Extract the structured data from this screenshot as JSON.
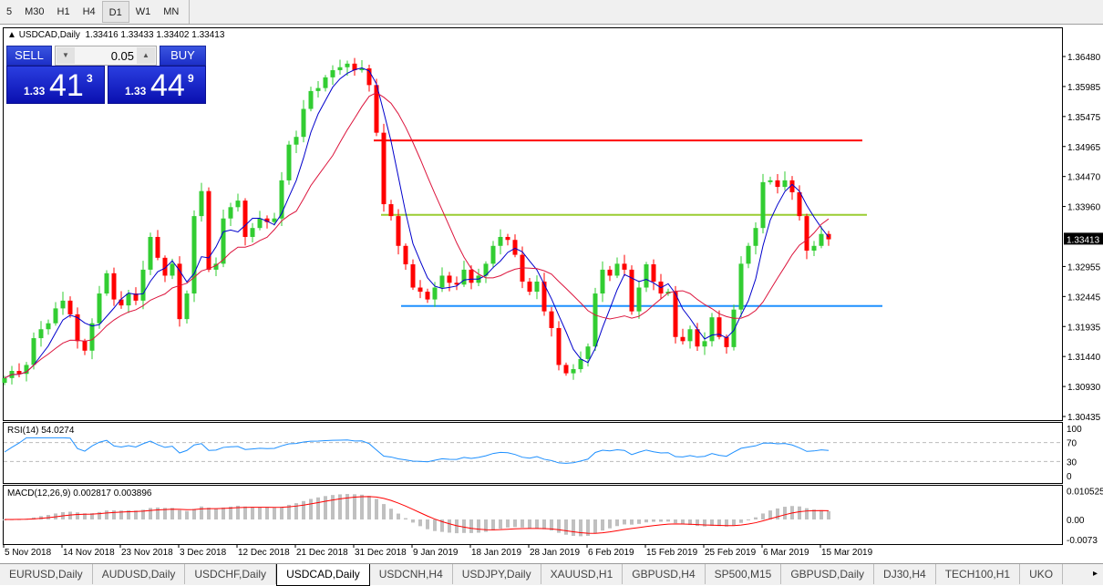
{
  "timeframes": [
    {
      "label": "5"
    },
    {
      "label": "M30"
    },
    {
      "label": "H1"
    },
    {
      "label": "H4"
    },
    {
      "label": "D1",
      "active": true
    },
    {
      "label": "W1"
    },
    {
      "label": "MN"
    }
  ],
  "header": {
    "symbol": "USDCAD,Daily",
    "ohlc": "1.33416 1.33433 1.33402 1.33413"
  },
  "trade": {
    "sell_label": "SELL",
    "buy_label": "BUY",
    "lot": "0.05",
    "sell": {
      "small": "1.33",
      "large": "41",
      "pip": "3"
    },
    "buy": {
      "small": "1.33",
      "large": "44",
      "pip": "9"
    }
  },
  "colors": {
    "bull": "#32cd32",
    "bear": "#ff0000",
    "fast_ma": "#0000cc",
    "slow_ma": "#dc143c",
    "rsi": "#1e90ff",
    "macd_signal": "#ff0000",
    "macd_hist": "#c0c0c0",
    "level_red": "#ff0000",
    "level_yellow": "#9acd32",
    "level_blue": "#1e90ff"
  },
  "chart_data": {
    "type": "candlestick",
    "price_axis": [
      "1.36480",
      "1.35985",
      "1.35475",
      "1.34965",
      "1.34470",
      "1.33960",
      "1.33413",
      "1.32955",
      "1.32445",
      "1.31935",
      "1.31440",
      "1.30930",
      "1.30435"
    ],
    "current_price": "1.33413",
    "ylim": [
      1.30435,
      1.3665
    ],
    "date_labels": [
      "5 Nov 2018",
      "14 Nov 2018",
      "23 Nov 2018",
      "3 Dec 2018",
      "12 Dec 2018",
      "21 Dec 2018",
      "31 Dec 2018",
      "9 Jan 2019",
      "18 Jan 2019",
      "28 Jan 2019",
      "6 Feb 2019",
      "15 Feb 2019",
      "25 Feb 2019",
      "6 Mar 2019",
      "15 Mar 2019"
    ],
    "closes": [
      1.3108,
      1.312,
      1.3115,
      1.313,
      1.3175,
      1.319,
      1.32,
      1.3225,
      1.3238,
      1.3215,
      1.317,
      1.3154,
      1.32,
      1.325,
      1.3284,
      1.324,
      1.323,
      1.325,
      1.3238,
      1.329,
      1.3345,
      1.331,
      1.328,
      1.33,
      1.3207,
      1.325,
      1.338,
      1.3422,
      1.329,
      1.33,
      1.3376,
      1.3395,
      1.3406,
      1.3345,
      1.336,
      1.3376,
      1.337,
      1.3376,
      1.344,
      1.35,
      1.3513,
      1.356,
      1.359,
      1.3595,
      1.3613,
      1.3625,
      1.363,
      1.3636,
      1.3625,
      1.3628,
      1.36,
      1.352,
      1.34,
      1.338,
      1.333,
      1.3299,
      1.326,
      1.3253,
      1.324,
      1.326,
      1.328,
      1.3268,
      1.3265,
      1.329,
      1.3268,
      1.328,
      1.33,
      1.333,
      1.3345,
      1.334,
      1.3315,
      1.327,
      1.3253,
      1.327,
      1.322,
      1.3192,
      1.313,
      1.3116,
      1.3123,
      1.314,
      1.3161,
      1.325,
      1.329,
      1.328,
      1.33,
      1.329,
      1.322,
      1.326,
      1.3299,
      1.327,
      1.325,
      1.3253,
      1.3177,
      1.317,
      1.319,
      1.3161,
      1.317,
      1.321,
      1.3177,
      1.316,
      1.3223,
      1.33,
      1.333,
      1.336,
      1.3437,
      1.344,
      1.3429,
      1.344,
      1.342,
      1.338,
      1.3322,
      1.333,
      1.335,
      1.3341
    ],
    "levels": [
      {
        "price": 1.3507,
        "color": "red"
      },
      {
        "price": 1.3382,
        "color": "yellow"
      },
      {
        "price": 1.3229,
        "color": "blue"
      }
    ],
    "rsi": {
      "label": "RSI(14) 54.0274",
      "axis": [
        "100",
        "70",
        "30",
        "0"
      ]
    },
    "macd": {
      "label": "MACD(12,26,9) 0.002817 0.003896",
      "axis": [
        "0.010525",
        "0.00",
        "-0.0073"
      ]
    }
  },
  "tabs": [
    {
      "label": "EURUSD,Daily"
    },
    {
      "label": "AUDUSD,Daily"
    },
    {
      "label": "USDCHF,Daily"
    },
    {
      "label": "USDCAD,Daily",
      "active": true
    },
    {
      "label": "USDCNH,H4"
    },
    {
      "label": "USDJPY,Daily"
    },
    {
      "label": "XAUUSD,H1"
    },
    {
      "label": "GBPUSD,H4"
    },
    {
      "label": "SP500,M15"
    },
    {
      "label": "GBPUSD,Daily"
    },
    {
      "label": "DJ30,H4"
    },
    {
      "label": "TECH100,H1"
    },
    {
      "label": "UKO"
    }
  ],
  "tabs_scroll": "▸"
}
